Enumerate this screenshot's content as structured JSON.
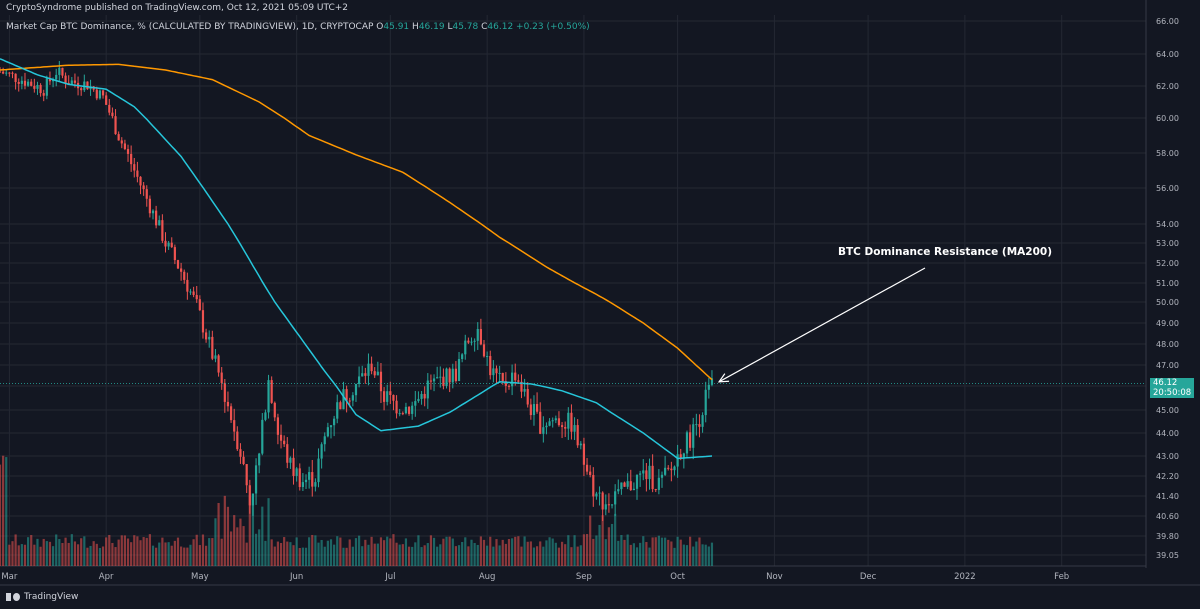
{
  "header": {
    "publisher": "CryptoSyndrome published on TradingView.com, Oct 12, 2021 05:09 UTC+2"
  },
  "legend": {
    "symbol": "Market Cap BTC Dominance, % (CALCULATED BY TRADINGVIEW), 1D, CRYPTOCAP",
    "o_label": "O",
    "o": "45.91",
    "h_label": "H",
    "h": "46.19",
    "l_label": "L",
    "l": "45.78",
    "c_label": "C",
    "c": "46.12",
    "change": "+0.23 (+0.50%)"
  },
  "annotation": {
    "text": "BTC Dominance Resistance (MA200)"
  },
  "price_tag": {
    "price": "46.12",
    "countdown": "20:50:08"
  },
  "footer": {
    "brand": "TradingView"
  },
  "colors": {
    "up": "#26a69a",
    "down": "#ef5350",
    "ma200": "#ff9800",
    "ma50": "#26c6da",
    "background": "#131722"
  },
  "chart_data": {
    "type": "line",
    "title": "",
    "y_ticks": [
      66.0,
      64.0,
      62.0,
      60.0,
      58.0,
      56.0,
      54.0,
      53.0,
      52.0,
      51.0,
      50.0,
      49.0,
      48.0,
      47.0,
      46.0,
      45.0,
      44.0,
      43.0,
      42.2,
      41.4,
      40.6,
      39.8,
      39.05
    ],
    "y_tick_labels": [
      "66.00",
      "64.00",
      "62.00",
      "60.00",
      "58.00",
      "56.00",
      "54.00",
      "53.00",
      "52.00",
      "51.00",
      "50.00",
      "49.00",
      "48.00",
      "47.00",
      "46.00",
      "45.00",
      "44.00",
      "43.00",
      "42.20",
      "41.40",
      "40.60",
      "39.80",
      "39.05"
    ],
    "x_ticks": [
      {
        "label": "Mar",
        "date": "2021-03-01"
      },
      {
        "label": "Apr",
        "date": "2021-04-01"
      },
      {
        "label": "May",
        "date": "2021-05-01"
      },
      {
        "label": "Jun",
        "date": "2021-06-01"
      },
      {
        "label": "Jul",
        "date": "2021-07-01"
      },
      {
        "label": "Aug",
        "date": "2021-08-01"
      },
      {
        "label": "Sep",
        "date": "2021-09-01"
      },
      {
        "label": "Oct",
        "date": "2021-10-01"
      },
      {
        "label": "Nov",
        "date": "2021-11-01"
      },
      {
        "label": "Dec",
        "date": "2021-12-01"
      },
      {
        "label": "2022",
        "date": "2022-01-01"
      },
      {
        "label": "Feb",
        "date": "2022-02-01"
      }
    ],
    "x_range": [
      "2021-02-26",
      "2022-02-28"
    ],
    "y_range": [
      38.6,
      66.2
    ],
    "y_scale": "log",
    "last_close": 46.12,
    "series": [
      {
        "kind": "close",
        "points": [
          [
            "2021-02-26",
            62.9
          ],
          [
            "2021-03-05",
            62.4
          ],
          [
            "2021-03-12",
            61.8
          ],
          [
            "2021-03-16",
            62.9
          ],
          [
            "2021-03-20",
            62.3
          ],
          [
            "2021-03-26",
            62.1
          ],
          [
            "2021-03-31",
            61.3
          ],
          [
            "2021-04-05",
            59.0
          ],
          [
            "2021-04-10",
            57.0
          ],
          [
            "2021-04-15",
            55.0
          ],
          [
            "2021-04-20",
            53.0
          ],
          [
            "2021-04-25",
            51.6
          ],
          [
            "2021-04-30",
            49.8
          ],
          [
            "2021-05-05",
            47.5
          ],
          [
            "2021-05-10",
            45.2
          ],
          [
            "2021-05-14",
            43.2
          ],
          [
            "2021-05-17",
            41.2
          ],
          [
            "2021-05-20",
            43.0
          ],
          [
            "2021-05-23",
            46.5
          ],
          [
            "2021-05-26",
            44.0
          ],
          [
            "2021-05-30",
            42.6
          ],
          [
            "2021-06-03",
            42.0
          ],
          [
            "2021-06-07",
            42.2
          ],
          [
            "2021-06-11",
            44.3
          ],
          [
            "2021-06-15",
            45.4
          ],
          [
            "2021-06-20",
            46.1
          ],
          [
            "2021-06-25",
            47.0
          ],
          [
            "2021-06-29",
            45.6
          ],
          [
            "2021-07-03",
            45.2
          ],
          [
            "2021-07-08",
            45.1
          ],
          [
            "2021-07-13",
            46.0
          ],
          [
            "2021-07-18",
            46.4
          ],
          [
            "2021-07-22",
            46.6
          ],
          [
            "2021-07-26",
            48.2
          ],
          [
            "2021-07-29",
            48.8
          ],
          [
            "2021-08-02",
            46.8
          ],
          [
            "2021-08-06",
            46.0
          ],
          [
            "2021-08-10",
            46.6
          ],
          [
            "2021-08-14",
            45.3
          ],
          [
            "2021-08-18",
            44.4
          ],
          [
            "2021-08-23",
            44.6
          ],
          [
            "2021-08-28",
            44.4
          ],
          [
            "2021-09-01",
            42.8
          ],
          [
            "2021-09-05",
            41.4
          ],
          [
            "2021-09-09",
            41.1
          ],
          [
            "2021-09-13",
            41.5
          ],
          [
            "2021-09-17",
            42.0
          ],
          [
            "2021-09-21",
            42.3
          ],
          [
            "2021-09-25",
            41.9
          ],
          [
            "2021-09-29",
            42.4
          ],
          [
            "2021-10-02",
            43.3
          ],
          [
            "2021-10-05",
            43.8
          ],
          [
            "2021-10-08",
            44.7
          ],
          [
            "2021-10-10",
            45.5
          ],
          [
            "2021-10-12",
            46.12
          ]
        ]
      },
      {
        "kind": "ma200",
        "points": [
          [
            "2021-02-26",
            63.0
          ],
          [
            "2021-03-20",
            63.3
          ],
          [
            "2021-04-05",
            63.35
          ],
          [
            "2021-04-20",
            63.0
          ],
          [
            "2021-05-05",
            62.4
          ],
          [
            "2021-05-20",
            61.0
          ],
          [
            "2021-06-05",
            59.0
          ],
          [
            "2021-06-20",
            57.9
          ],
          [
            "2021-07-05",
            56.9
          ],
          [
            "2021-07-20",
            55.2
          ],
          [
            "2021-08-05",
            53.3
          ],
          [
            "2021-08-20",
            51.8
          ],
          [
            "2021-09-05",
            50.4
          ],
          [
            "2021-09-20",
            49.0
          ],
          [
            "2021-10-01",
            47.8
          ],
          [
            "2021-10-12",
            46.3
          ]
        ]
      },
      {
        "kind": "ma50",
        "points": [
          [
            "2021-02-26",
            63.7
          ],
          [
            "2021-03-10",
            62.7
          ],
          [
            "2021-03-20",
            62.1
          ],
          [
            "2021-04-01",
            61.8
          ],
          [
            "2021-04-10",
            60.7
          ],
          [
            "2021-04-25",
            57.8
          ],
          [
            "2021-05-10",
            54.0
          ],
          [
            "2021-05-25",
            50.0
          ],
          [
            "2021-06-10",
            46.7
          ],
          [
            "2021-06-20",
            44.8
          ],
          [
            "2021-06-28",
            44.1
          ],
          [
            "2021-07-10",
            44.3
          ],
          [
            "2021-07-20",
            44.9
          ],
          [
            "2021-07-30",
            45.7
          ],
          [
            "2021-08-05",
            46.2
          ],
          [
            "2021-08-15",
            46.1
          ],
          [
            "2021-08-25",
            45.8
          ],
          [
            "2021-09-05",
            45.3
          ],
          [
            "2021-09-20",
            44.0
          ],
          [
            "2021-10-01",
            42.9
          ],
          [
            "2021-10-12",
            43.0
          ]
        ]
      }
    ]
  }
}
